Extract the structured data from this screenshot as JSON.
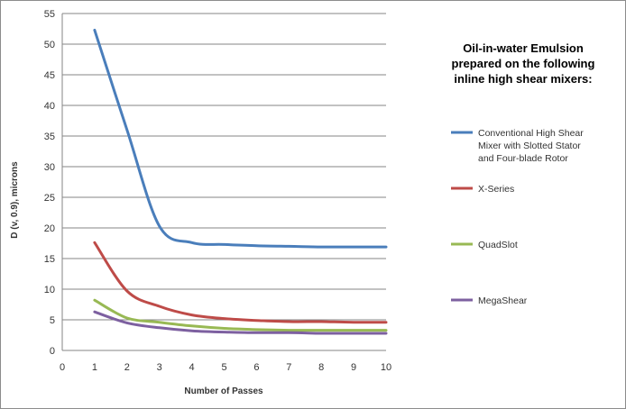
{
  "chart_data": {
    "type": "line",
    "title": "",
    "xlabel": "Number of Passes",
    "ylabel": "D (v, 0.9), microns",
    "xlim": [
      0,
      10
    ],
    "ylim": [
      0,
      55
    ],
    "xticks": [
      0,
      1,
      2,
      3,
      4,
      5,
      6,
      7,
      8,
      9,
      10
    ],
    "yticks": [
      0,
      5,
      10,
      15,
      20,
      25,
      30,
      35,
      40,
      45,
      50,
      55
    ],
    "grid": "horizontal",
    "legend_position": "right",
    "legend_title": [
      "Oil-in-water Emulsion",
      "prepared on the following",
      "inline high shear mixers:"
    ],
    "series": [
      {
        "name": "Conventional High Shear Mixer with Slotted Stator and Four-blade Rotor",
        "legend_lines": [
          "Conventional High Shear",
          "Mixer with Slotted Stator",
          "and Four-blade Rotor"
        ],
        "color": "#4a7ebb",
        "x": [
          1,
          2,
          3,
          4,
          5,
          6,
          7,
          8,
          9,
          10
        ],
        "y": [
          52.3,
          36.0,
          20.3,
          17.6,
          17.3,
          17.1,
          17.0,
          16.9,
          16.9,
          16.9
        ]
      },
      {
        "name": "X-Series",
        "legend_lines": [
          "X-Series"
        ],
        "color": "#be4b48",
        "x": [
          1,
          2,
          3,
          4,
          5,
          6,
          7,
          8,
          9,
          10
        ],
        "y": [
          17.6,
          9.7,
          7.2,
          5.8,
          5.2,
          4.9,
          4.7,
          4.7,
          4.6,
          4.6
        ]
      },
      {
        "name": "QuadSlot",
        "legend_lines": [
          "QuadSlot"
        ],
        "color": "#98b954",
        "x": [
          1,
          2,
          3,
          4,
          5,
          6,
          7,
          8,
          9,
          10
        ],
        "y": [
          8.2,
          5.3,
          4.6,
          4.0,
          3.6,
          3.4,
          3.3,
          3.3,
          3.3,
          3.3
        ]
      },
      {
        "name": "MegaShear",
        "legend_lines": [
          "MegaShear"
        ],
        "color": "#7d60a0",
        "x": [
          1,
          2,
          3,
          4,
          5,
          6,
          7,
          8,
          9,
          10
        ],
        "y": [
          6.3,
          4.5,
          3.7,
          3.2,
          3.0,
          2.9,
          2.9,
          2.8,
          2.8,
          2.8
        ]
      }
    ]
  }
}
